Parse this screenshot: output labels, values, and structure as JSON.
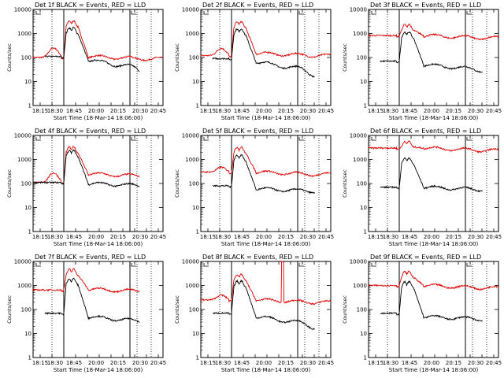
{
  "figure": {
    "panel_titles": [
      "Det 1f BLACK = Events, RED = LLD",
      "Det 2f BLACK = Events, RED = LLD",
      "Det 3f BLACK = Events, RED = LLD",
      "Det 4f BLACK = Events, RED = LLD",
      "Det 5f BLACK = Events, RED = LLD",
      "Det 6f BLACK = Events, RED = LLD",
      "Det 7f BLACK = Events, RED = LLD",
      "Det 8f BLACK = Events, RED = LLD",
      "Det 9f BLACK = Events, RED = LLD"
    ],
    "ylabel": "Counts/sec",
    "xlabel": "Start Time (18-Mar-14 18:06:00)",
    "xticks": [
      "18:15",
      "18:30",
      "18:45",
      "20:00",
      "20:15",
      "20:30",
      "20:45"
    ],
    "yticks": [
      "1",
      "10",
      "100",
      "1000",
      "10000"
    ],
    "colors": {
      "events": "#000000",
      "lld": "#e00000"
    }
  },
  "chart_data": {
    "type": "line",
    "x_unit": "minutes since 18:06",
    "xlim": [
      0,
      165
    ],
    "yscale": "log",
    "ylim": [
      1,
      10000
    ],
    "grid": false,
    "vlines_dotted": [
      24,
      132,
      150
    ],
    "vlines_solid": [
      39,
      123
    ],
    "panels": [
      {
        "events": {
          "base": 110,
          "start": 15,
          "end": 135,
          "peak": 1800,
          "second": 0,
          "tail": 40
        },
        "lld": {
          "base": 100,
          "start": 0,
          "end": 165,
          "peak": 3500,
          "second": 0,
          "bump": 2.5,
          "tail": 110
        }
      },
      {
        "events": {
          "base": 90,
          "start": 15,
          "end": 145,
          "peak": 1600,
          "second": 0,
          "tail": 35
        },
        "lld": {
          "base": 120,
          "start": 0,
          "end": 165,
          "peak": 3200,
          "second": 0,
          "bump": 2.0,
          "tail": 150
        }
      },
      {
        "events": {
          "base": 70,
          "start": 15,
          "end": 145,
          "peak": 1200,
          "second": 0,
          "tail": 40
        },
        "lld": {
          "base": 820,
          "start": 0,
          "end": 165,
          "peak": 2500,
          "second": 0,
          "bump": 1.0,
          "tail": 820
        }
      },
      {
        "events": {
          "base": 110,
          "start": 0,
          "end": 135,
          "peak": 2500,
          "second": 0,
          "tail": 100
        },
        "lld": {
          "base": 110,
          "start": 0,
          "end": 135,
          "peak": 3500,
          "second": 0,
          "bump": 2.5,
          "tail": 250
        }
      },
      {
        "events": {
          "base": 80,
          "start": 15,
          "end": 145,
          "peak": 1600,
          "second": 0,
          "tail": 60
        },
        "lld": {
          "base": 300,
          "start": 0,
          "end": 165,
          "peak": 3400,
          "second": 0,
          "bump": 1.6,
          "tail": 300
        }
      },
      {
        "events": {
          "base": 70,
          "start": 15,
          "end": 145,
          "peak": 1200,
          "second": 0,
          "tail": 70
        },
        "lld": {
          "base": 3000,
          "start": 0,
          "end": 165,
          "peak": 6000,
          "second": 0,
          "bump": 1.0,
          "tail": 3000
        }
      },
      {
        "events": {
          "base": 70,
          "start": 15,
          "end": 135,
          "peak": 2000,
          "second": 0,
          "tail": 40
        },
        "lld": {
          "base": 650,
          "start": 0,
          "end": 135,
          "peak": 5000,
          "second": 0,
          "bump": 1.0,
          "tail": 700
        }
      },
      {
        "events": {
          "base": 70,
          "start": 15,
          "end": 145,
          "peak": 1600,
          "second": 0,
          "tail": 30
        },
        "lld": {
          "base": 250,
          "start": 0,
          "end": 165,
          "peak": 3000,
          "second": 10000,
          "bump": 1.6,
          "tail": 250
        }
      },
      {
        "events": {
          "base": 70,
          "start": 15,
          "end": 145,
          "peak": 1500,
          "second": 0,
          "tail": 50
        },
        "lld": {
          "base": 1000,
          "start": 0,
          "end": 165,
          "peak": 4000,
          "second": 0,
          "bump": 1.0,
          "tail": 1000
        }
      }
    ]
  }
}
